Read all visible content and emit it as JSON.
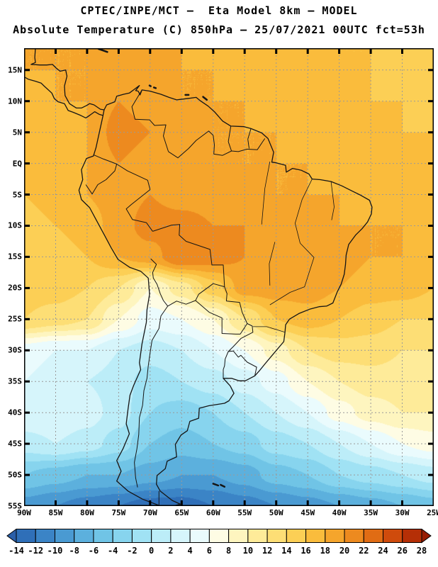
{
  "header": {
    "line1": "CPTEC/INPE/MCT —  Eta Model 8km — MODEL",
    "line2": "Absolute Temperature (C) 850hPa — 25/07/2021 00UTC fct=53h"
  },
  "map": {
    "lon_min": -90,
    "lon_max": -25,
    "lat_min": -55,
    "lat_max": 18.5,
    "grid_color": "#9a9a9a",
    "coast_color": "#151515",
    "lat_ticks": [
      {
        "label": "15N",
        "lat": 15
      },
      {
        "label": "10N",
        "lat": 10
      },
      {
        "label": "5N",
        "lat": 5
      },
      {
        "label": "EQ",
        "lat": 0
      },
      {
        "label": "5S",
        "lat": -5
      },
      {
        "label": "10S",
        "lat": -10
      },
      {
        "label": "15S",
        "lat": -15
      },
      {
        "label": "20S",
        "lat": -20
      },
      {
        "label": "25S",
        "lat": -25
      },
      {
        "label": "30S",
        "lat": -30
      },
      {
        "label": "35S",
        "lat": -35
      },
      {
        "label": "40S",
        "lat": -40
      },
      {
        "label": "45S",
        "lat": -45
      },
      {
        "label": "50S",
        "lat": -50
      },
      {
        "label": "55S",
        "lat": -55
      }
    ],
    "lon_ticks": [
      {
        "label": "90W",
        "lon": -90
      },
      {
        "label": "85W",
        "lon": -85
      },
      {
        "label": "80W",
        "lon": -80
      },
      {
        "label": "75W",
        "lon": -75
      },
      {
        "label": "70W",
        "lon": -70
      },
      {
        "label": "65W",
        "lon": -65
      },
      {
        "label": "60W",
        "lon": -60
      },
      {
        "label": "55W",
        "lon": -55
      },
      {
        "label": "50W",
        "lon": -50
      },
      {
        "label": "45W",
        "lon": -45
      },
      {
        "label": "40W",
        "lon": -40
      },
      {
        "label": "35W",
        "lon": -35
      },
      {
        "label": "30W",
        "lon": -30
      },
      {
        "label": "25W",
        "lon": -25
      }
    ]
  },
  "chart_data": {
    "type": "heatmap",
    "title": "Absolute Temperature (C) 850hPa",
    "model": "CPTEC/INPE/MCT Eta Model 8km",
    "valid": "25/07/2021 00UTC fct=53h",
    "units": "C",
    "grid_lons": [
      -90,
      -85,
      -80,
      -75,
      -70,
      -65,
      -60,
      -55,
      -50,
      -45,
      -40,
      -35,
      -30,
      -25
    ],
    "grid_lats": [
      20,
      15,
      10,
      5,
      0,
      -5,
      -10,
      -15,
      -20,
      -25,
      -30,
      -35,
      -40,
      -45,
      -50,
      -55
    ],
    "values": [
      [
        18,
        18,
        18,
        18,
        18,
        18,
        17,
        17,
        17,
        16,
        16,
        16,
        15,
        15
      ],
      [
        18,
        18,
        18,
        19,
        19,
        18,
        18,
        17,
        17,
        17,
        16,
        16,
        15,
        15
      ],
      [
        17,
        18,
        18,
        20,
        19,
        18,
        18,
        18,
        17,
        17,
        17,
        16,
        16,
        15
      ],
      [
        17,
        17,
        18,
        21,
        20,
        19,
        18,
        18,
        18,
        17,
        17,
        17,
        16,
        16
      ],
      [
        16,
        17,
        18,
        20,
        19,
        19,
        18,
        18,
        18,
        18,
        17,
        17,
        17,
        16
      ],
      [
        16,
        17,
        18,
        19,
        20,
        19,
        19,
        19,
        18,
        18,
        18,
        17,
        17,
        17
      ],
      [
        15,
        16,
        17,
        19,
        21,
        21,
        20,
        20,
        19,
        19,
        18,
        18,
        18,
        17
      ],
      [
        15,
        15,
        16,
        18,
        19,
        22,
        21,
        20,
        20,
        19,
        19,
        18,
        18,
        17
      ],
      [
        15,
        15,
        14,
        12,
        8,
        11,
        15,
        19,
        19,
        19,
        18,
        17,
        17,
        16
      ],
      [
        14,
        13,
        12,
        8,
        5,
        6,
        8,
        12,
        16,
        17,
        16,
        15,
        14,
        14
      ],
      [
        5,
        4,
        4,
        2,
        1,
        2,
        4,
        6,
        9,
        12,
        13,
        13,
        12,
        12
      ],
      [
        4,
        3,
        2,
        1,
        -1,
        0,
        1,
        3,
        5,
        8,
        10,
        11,
        11,
        11
      ],
      [
        4,
        4,
        3,
        1,
        -2,
        -3,
        -2,
        0,
        2,
        4,
        7,
        9,
        10,
        10
      ],
      [
        1,
        2,
        1,
        -1,
        -4,
        -5,
        -4,
        -3,
        -1,
        0,
        2,
        4,
        6,
        7
      ],
      [
        -4,
        -5,
        -6,
        -6,
        -7,
        -8,
        -8,
        -7,
        -5,
        -4,
        -2,
        -1,
        0,
        1
      ],
      [
        -9,
        -10,
        -11,
        -12,
        -13,
        -13,
        -12,
        -11,
        -10,
        -9,
        -8,
        -7,
        -6,
        -5
      ]
    ],
    "levels": [
      -14,
      -12,
      -10,
      -8,
      -6,
      -4,
      -2,
      0,
      2,
      4,
      6,
      8,
      10,
      12,
      14,
      16,
      18,
      20,
      22,
      24,
      26,
      28
    ],
    "colors": [
      "#2b5fa8",
      "#2f6fb8",
      "#3b84c6",
      "#4a9ad2",
      "#5cb0dd",
      "#70c4e6",
      "#87d4ee",
      "#a0e2f4",
      "#bcedf8",
      "#d6f5fb",
      "#eafbfd",
      "#fefce4",
      "#fef5bf",
      "#feeb99",
      "#fdde75",
      "#fccf55",
      "#fabc3c",
      "#f5a52c",
      "#ed8a1f",
      "#e06c14",
      "#cf4b0c",
      "#b52f06",
      "#971c02"
    ]
  },
  "colorbar": {
    "orientation": "horizontal",
    "tick_labels": [
      "-14",
      "-12",
      "-10",
      "-8",
      "-6",
      "-4",
      "-2",
      "0",
      "2",
      "4",
      "6",
      "8",
      "10",
      "12",
      "14",
      "16",
      "18",
      "20",
      "22",
      "24",
      "26",
      "28"
    ]
  }
}
